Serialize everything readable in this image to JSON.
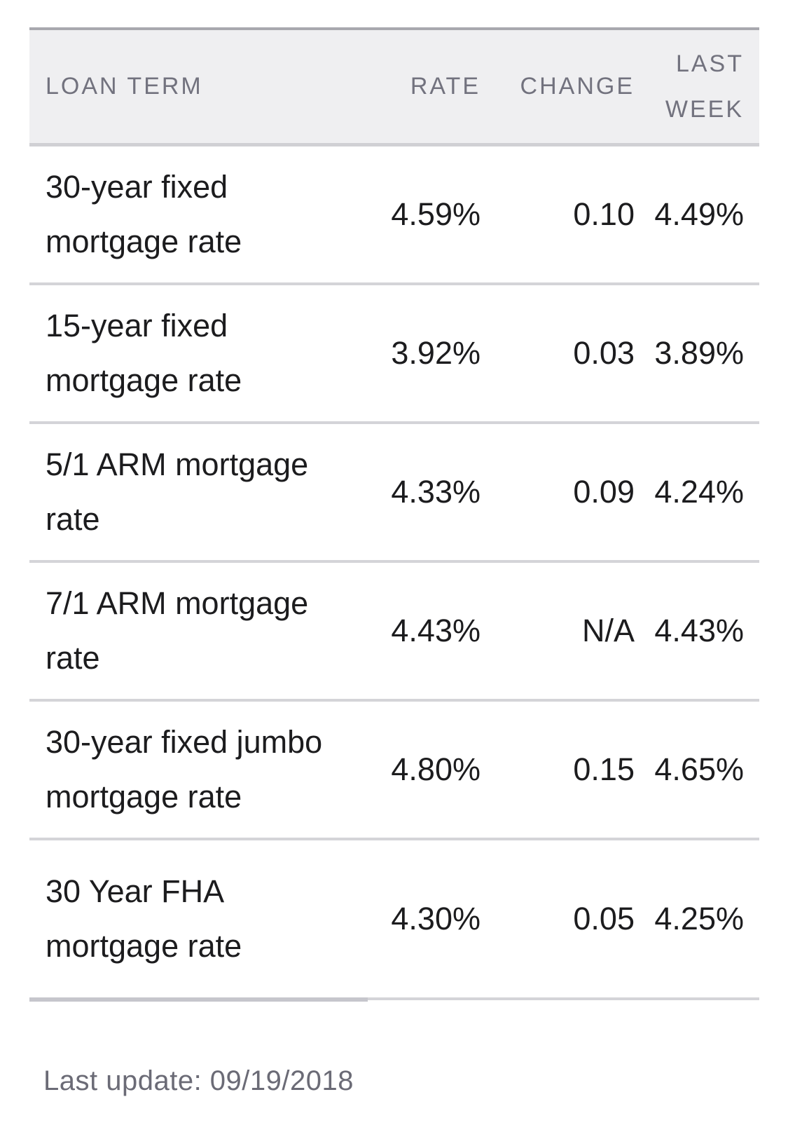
{
  "table": {
    "header": {
      "loan_term": "LOAN TERM",
      "rate": "RATE",
      "change": "CHANGE",
      "last_week": "LAST WEEK"
    },
    "rows": [
      {
        "term": "30-year fixed mortgage rate",
        "rate": "4.59%",
        "change": "0.10",
        "last_week": "4.49%"
      },
      {
        "term": "15-year fixed mortgage rate",
        "rate": "3.92%",
        "change": "0.03",
        "last_week": "3.89%"
      },
      {
        "term": "5/1 ARM mortgage rate",
        "rate": "4.33%",
        "change": "0.09",
        "last_week": "4.24%"
      },
      {
        "term": "7/1 ARM mortgage rate",
        "rate": "4.43%",
        "change": "N/A",
        "last_week": "4.43%"
      },
      {
        "term": "30-year fixed jumbo mortgage rate",
        "rate": "4.80%",
        "change": "0.15",
        "last_week": "4.65%"
      },
      {
        "term": "30 Year FHA mortgage rate",
        "rate": "4.30%",
        "change": "0.05",
        "last_week": "4.25%"
      }
    ],
    "footer": "Last update: 09/19/2018"
  },
  "colors": {
    "header_background": "#efeff1",
    "header_text": "#72727e",
    "table_top_border": "#a8a8ae",
    "row_separator": "#d4d4d8",
    "bottom_line_left": "#c6c6cc",
    "body_text": "#1c1c1e",
    "footer_text": "#6b6b76",
    "page_background": "#ffffff"
  },
  "chart_data": {
    "type": "table",
    "title": "Mortgage rates by loan term",
    "columns": [
      "LOAN TERM",
      "RATE",
      "CHANGE",
      "LAST WEEK"
    ],
    "rows": [
      [
        "30-year fixed mortgage rate",
        "4.59%",
        "0.10",
        "4.49%"
      ],
      [
        "15-year fixed mortgage rate",
        "3.92%",
        "0.03",
        "3.89%"
      ],
      [
        "5/1 ARM mortgage rate",
        "4.33%",
        "0.09",
        "4.24%"
      ],
      [
        "7/1 ARM mortgage rate",
        "4.43%",
        "N/A",
        "4.43%"
      ],
      [
        "30-year fixed jumbo mortgage rate",
        "4.80%",
        "0.15",
        "4.65%"
      ],
      [
        "30 Year FHA mortgage rate",
        "4.30%",
        "0.05",
        "4.25%"
      ]
    ],
    "note": "Last update: 09/19/2018"
  }
}
